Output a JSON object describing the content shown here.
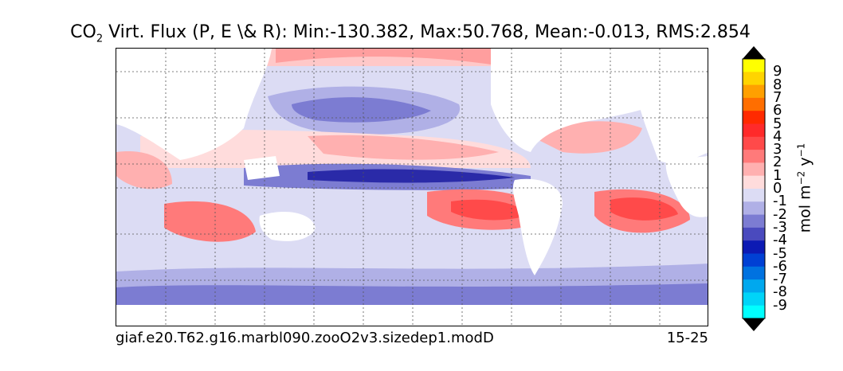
{
  "title": {
    "prefix": "CO",
    "subscript": "2",
    "rest": " Virt. Flux (P, E \\& R): Min:-130.382, Max:50.768, Mean:-0.013, RMS:2.854"
  },
  "footer": {
    "case_name": "giaf.e20.T62.g16.marbl090.zooO2v3.sizedep1.modD",
    "years": "15-25"
  },
  "colorbar": {
    "label_main": "mol m",
    "label_exp1": "−2",
    "label_mid": " y",
    "label_exp2": "−1",
    "ticks": [
      "9",
      "8",
      "7",
      "6",
      "5",
      "4",
      "3",
      "2",
      "1",
      "0",
      "-1",
      "-2",
      "-3",
      "-4",
      "-5",
      "-6",
      "-7",
      "-8",
      "-9"
    ],
    "colors": [
      "#ffff00",
      "#ffd400",
      "#ffa000",
      "#ff6e00",
      "#ff2a00",
      "#ff2a2a",
      "#ff4a4a",
      "#ff7a7a",
      "#ffb0b0",
      "#ffdcdc",
      "#dcdcf4",
      "#b0b0e6",
      "#7c7cd2",
      "#4a4abe",
      "#0c1ab4",
      "#0040d4",
      "#0072e0",
      "#00a8ee",
      "#00d4f8",
      "#00ffff"
    ]
  }
}
